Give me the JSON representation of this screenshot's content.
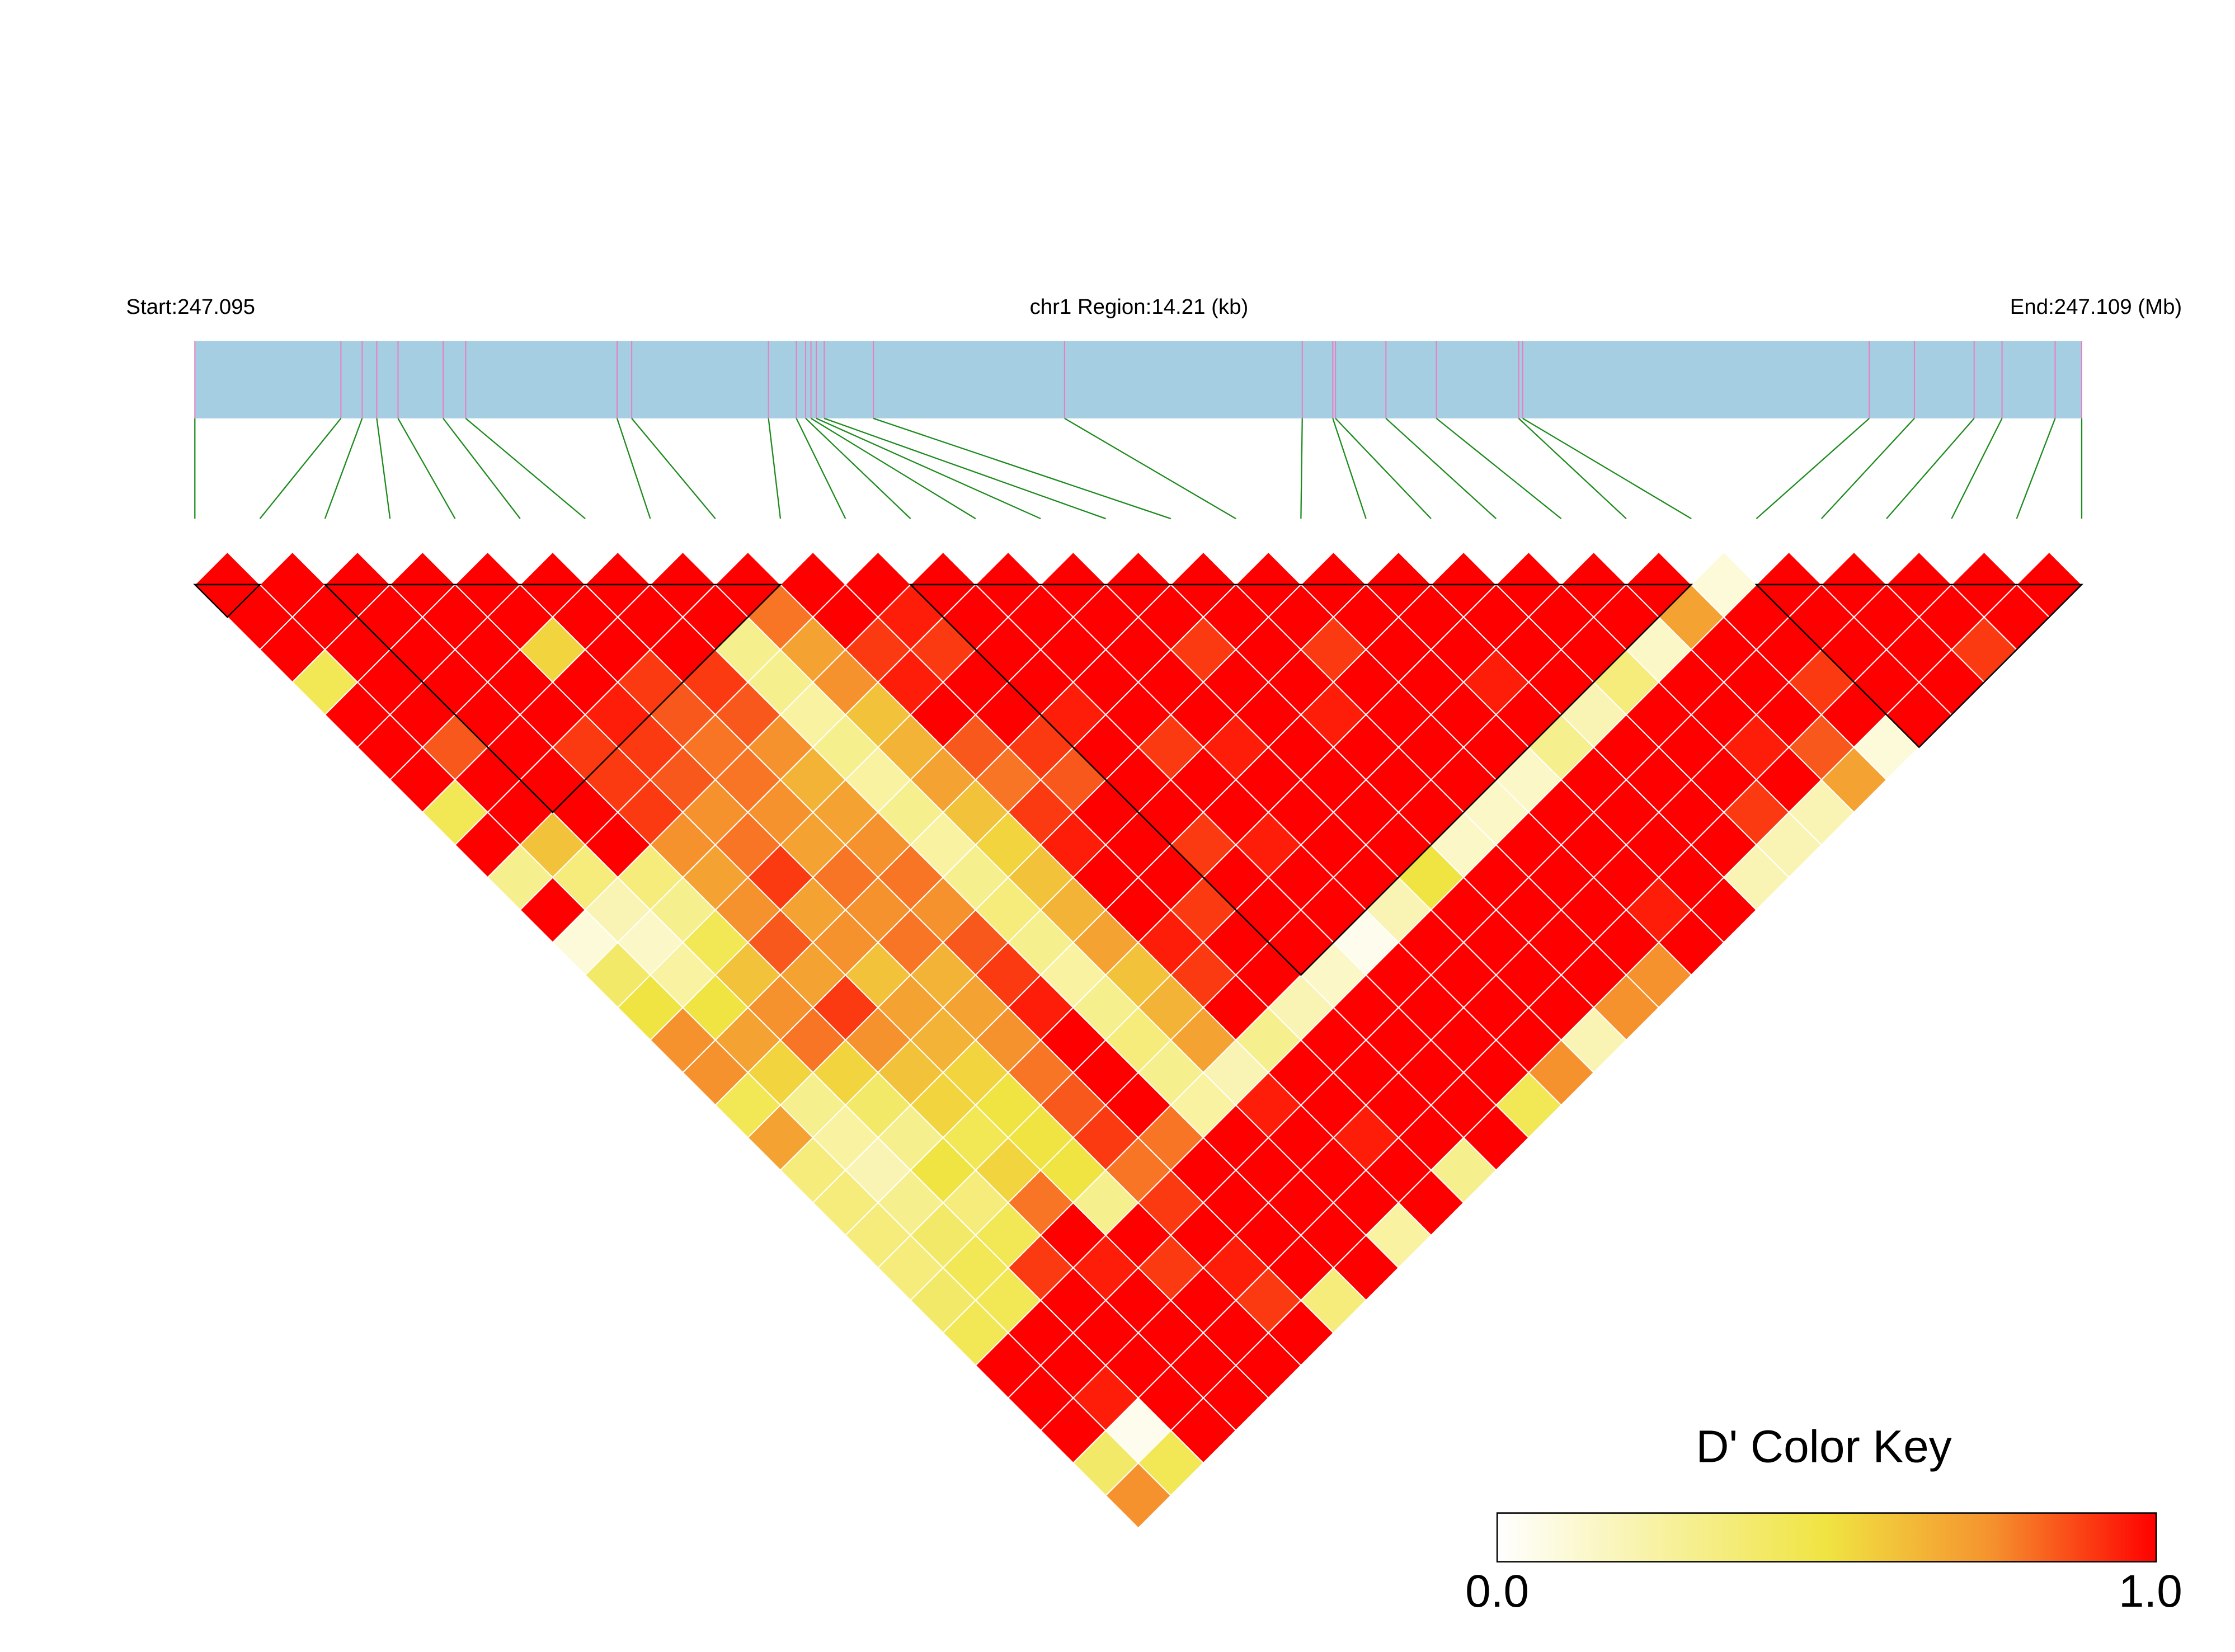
{
  "chart_data": {
    "type": "ld_heatmap",
    "start_label": "Start:247.095",
    "region_label": "chr1 Region:14.21 (kb)",
    "end_label": "End:247.109 (Mb)",
    "xlim": [
      0,
      14.21
    ],
    "positions": [
      0,
      1.1,
      1.26,
      1.37,
      1.53,
      1.87,
      2.04,
      3.18,
      3.29,
      4.32,
      4.53,
      4.6,
      4.64,
      4.68,
      4.74,
      5.11,
      6.55,
      8.34,
      8.57,
      8.59,
      8.97,
      9.35,
      9.97,
      10.0,
      12.61,
      12.95,
      13.4,
      13.61,
      14.01,
      14.21
    ],
    "bar_color": "#a6cee3",
    "tick_color": "#e87fc0",
    "connector_color": "#1e8b1e",
    "dprime": [
      [
        1,
        1,
        1,
        0.45,
        1,
        1,
        1,
        0.45,
        1,
        0.3,
        1,
        0.1,
        0.4,
        0.5,
        0.75,
        0.75,
        0.45,
        0.7,
        0.35,
        0.35,
        0.35,
        0.35,
        0.4,
        0.45,
        1,
        1,
        1,
        0.4,
        0.75
      ],
      [
        1,
        1,
        1,
        1,
        1,
        0.85,
        1,
        1,
        0.6,
        0.35,
        0.2,
        0.15,
        0.25,
        0.5,
        0.7,
        0.55,
        0.3,
        0.25,
        0.2,
        0.3,
        0.4,
        0.45,
        0.45,
        1,
        1,
        0.95,
        0.05,
        0.45
      ],
      [
        1,
        1,
        1,
        1,
        1,
        1,
        1,
        1,
        1,
        0.35,
        0.3,
        0.45,
        0.6,
        0.75,
        0.8,
        0.55,
        0.4,
        0.3,
        0.5,
        0.35,
        0.45,
        0.9,
        1,
        1,
        1,
        1,
        1
      ],
      [
        1,
        1,
        1,
        1,
        1,
        0.9,
        0.9,
        0.9,
        0.75,
        0.7,
        0.75,
        0.85,
        0.7,
        0.9,
        0.75,
        0.6,
        0.55,
        0.45,
        0.55,
        0.8,
        1,
        0.95,
        1,
        1,
        1,
        1
      ],
      [
        1,
        1,
        0.55,
        1,
        0.95,
        0.9,
        0.85,
        0.75,
        0.8,
        0.9,
        0.7,
        0.75,
        0.6,
        0.7,
        0.65,
        0.55,
        0.5,
        0.5,
        0.5,
        0.3,
        1,
        0.9,
        1,
        1,
        1
      ],
      [
        1,
        1,
        1,
        0.9,
        0.85,
        0.8,
        0.8,
        0.75,
        0.7,
        0.8,
        0.75,
        0.8,
        0.65,
        0.7,
        0.75,
        0.8,
        0.85,
        0.9,
        0.8,
        0.9,
        1,
        0.95,
        0.9,
        1
      ],
      [
        1,
        1,
        1,
        0.9,
        0.85,
        0.75,
        0.65,
        0.7,
        0.75,
        0.8,
        0.75,
        0.85,
        0.9,
        0.95,
        1,
        1,
        1,
        0.8,
        1,
        1,
        1,
        1,
        0.35
      ],
      [
        1,
        1,
        0.3,
        0.3,
        0.25,
        0.3,
        0.25,
        0.3,
        0.25,
        0.3,
        0.35,
        0.3,
        0.25,
        0.3,
        0.35,
        0.3,
        0.25,
        1,
        1,
        1,
        1,
        1
      ],
      [
        1,
        0.8,
        0.7,
        0.75,
        0.6,
        0.65,
        0.7,
        0.6,
        0.55,
        0.6,
        0.65,
        0.7,
        0.6,
        0.65,
        0.7,
        0.2,
        0.95,
        1,
        1,
        1,
        0.25
      ],
      [
        1,
        1,
        0.9,
        0.95,
        1,
        0.85,
        0.8,
        0.9,
        0.95,
        1,
        1,
        0.95,
        0.9,
        1,
        0.3,
        1,
        1,
        0.95,
        1,
        1
      ],
      [
        1,
        0.95,
        0.9,
        1,
        1,
        0.9,
        0.85,
        1,
        1,
        1,
        0.9,
        1,
        1,
        0.2,
        1,
        1,
        1,
        1,
        0.3
      ],
      [
        1,
        1,
        1,
        1,
        0.95,
        1,
        1,
        1,
        0.9,
        1,
        1,
        1,
        0.15,
        1,
        1,
        1,
        1,
        1
      ],
      [
        1,
        1,
        1,
        1,
        1,
        0.9,
        1,
        1,
        0.95,
        1,
        1,
        0.05,
        1,
        1,
        1,
        1,
        0.45
      ],
      [
        1,
        1,
        1,
        1,
        1,
        0.95,
        1,
        1,
        1,
        1,
        0.2,
        1,
        1,
        1,
        1,
        0.75
      ],
      [
        1,
        1,
        0.9,
        1,
        1,
        1,
        1,
        1,
        1,
        0.5,
        1,
        1,
        1,
        1,
        0.2
      ],
      [
        1,
        1,
        1,
        1,
        0.95,
        1,
        1,
        1,
        0.15,
        1,
        1,
        1,
        1,
        0.75
      ],
      [
        1,
        1,
        0.9,
        1,
        1,
        1,
        1,
        0.15,
        1,
        1,
        1,
        1,
        0.75
      ],
      [
        1,
        1,
        1,
        1,
        1,
        1,
        0.15,
        1,
        1,
        1,
        0.95,
        1
      ],
      [
        1,
        1,
        1,
        0.95,
        1,
        0.3,
        1,
        1,
        1,
        1,
        1
      ],
      [
        1,
        1,
        1,
        1,
        0.2,
        1,
        1,
        1,
        1,
        0.2
      ],
      [
        1,
        1,
        1,
        0.35,
        1,
        1,
        1,
        0.9,
        0.2
      ],
      [
        1,
        1,
        0.15,
        1,
        1,
        0.95,
        1,
        0.2
      ],
      [
        1,
        0.7,
        1,
        1,
        1,
        0.85,
        0.7
      ],
      [
        0.1,
        1,
        1,
        0.9,
        1,
        0.1
      ],
      [
        1,
        1,
        1,
        1,
        1
      ],
      [
        1,
        1,
        1,
        1
      ],
      [
        1,
        1,
        0.9
      ],
      [
        1,
        1
      ],
      [
        1
      ]
    ],
    "blocks": [
      [
        0,
        1
      ],
      [
        2,
        9
      ],
      [
        11,
        23
      ],
      [
        24,
        29
      ]
    ],
    "colorscale": [
      {
        "value": 0,
        "color": "#ffffff"
      },
      {
        "value": 0.5,
        "color": "#f0e442"
      },
      {
        "value": 0.75,
        "color": "#f5922e"
      },
      {
        "value": 1,
        "color": "#ff0000"
      }
    ],
    "legend_title": "D' Color Key",
    "clim": [
      0,
      1
    ],
    "cticks": [
      {
        "value": 0,
        "label": "0.0"
      },
      {
        "value": 1,
        "label": "1.0"
      }
    ]
  }
}
